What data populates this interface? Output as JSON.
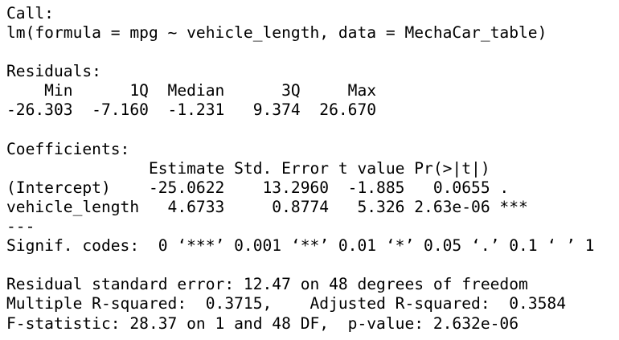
{
  "output": {
    "call_header": "Call:",
    "call": "lm(formula = mpg ~ vehicle_length, data = MechaCar_table)",
    "residuals_header": "Residuals:",
    "residuals_columns": "    Min      1Q  Median      3Q     Max ",
    "residuals_values": "-26.303  -7.160  -1.231   9.374  26.670 ",
    "coefficients_header": "Coefficients:",
    "coefficients_columns": "               Estimate Std. Error t value Pr(>|t|)    ",
    "coef_intercept": "(Intercept)    -25.0622    13.2960  -1.885   0.0655 .  ",
    "coef_vehicle_length": "vehicle_length   4.6733     0.8774   5.326 2.63e-06 ***",
    "separator": "---",
    "signif_codes": "Signif. codes:  0 ‘***’ 0.001 ‘**’ 0.01 ‘*’ 0.05 ‘.’ 0.1 ‘ ’ 1",
    "residual_std_error": "Residual standard error: 12.47 on 48 degrees of freedom",
    "r_squared": "Multiple R-squared:  0.3715,\tAdjusted R-squared:  0.3584 ",
    "f_statistic": "F-statistic: 28.37 on 1 and 48 DF,  p-value: 2.632e-06"
  }
}
